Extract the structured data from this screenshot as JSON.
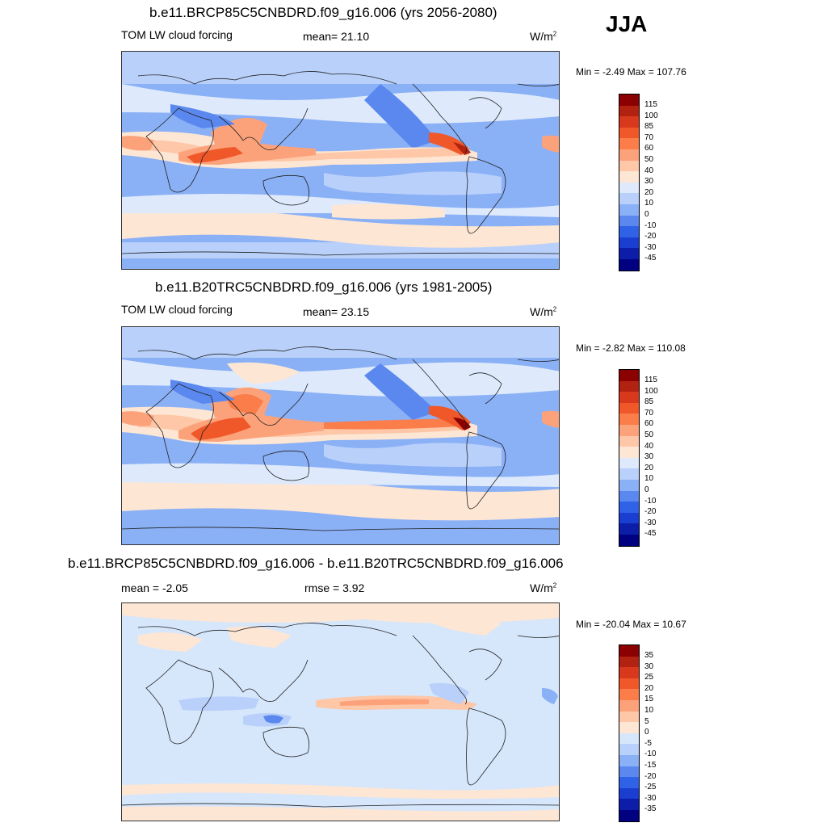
{
  "season": "JJA",
  "panels": [
    {
      "title": "b.e11.BRCP85C5CNBDRD.f09_g16.006 (yrs 2056-2080)",
      "variable": "TOM LW cloud forcing",
      "stat1": "mean=  21.10",
      "stat2": "",
      "units": "W/m",
      "units_sup": "2",
      "minmax": "Min =  -2.49 Max = 107.76",
      "colorbar": {
        "ticks": [
          "115",
          "100",
          "85",
          "70",
          "60",
          "50",
          "40",
          "30",
          "20",
          "10",
          "0",
          "-10",
          "-20",
          "-30",
          "-45"
        ],
        "colors": [
          "#8b0000",
          "#b22210",
          "#d8381c",
          "#f0582a",
          "#fa7d4a",
          "#fca27a",
          "#fdc7a8",
          "#fde6d4",
          "#deeafc",
          "#b8d0fa",
          "#8ab0f6",
          "#5a88ef",
          "#3062e8",
          "#1a3ed0",
          "#0c1ea8",
          "#000080"
        ]
      }
    },
    {
      "title": "b.e11.B20TRC5CNBDRD.f09_g16.006 (yrs 1981-2005)",
      "variable": "TOM LW cloud forcing",
      "stat1": "mean=  23.15",
      "stat2": "",
      "units": "W/m",
      "units_sup": "2",
      "minmax": "Min =  -2.82 Max = 110.08",
      "colorbar": {
        "ticks": [
          "115",
          "100",
          "85",
          "70",
          "60",
          "50",
          "40",
          "30",
          "20",
          "10",
          "0",
          "-10",
          "-20",
          "-30",
          "-45"
        ],
        "colors": [
          "#8b0000",
          "#b22210",
          "#d8381c",
          "#f0582a",
          "#fa7d4a",
          "#fca27a",
          "#fdc7a8",
          "#fde6d4",
          "#deeafc",
          "#b8d0fa",
          "#8ab0f6",
          "#5a88ef",
          "#3062e8",
          "#1a3ed0",
          "#0c1ea8",
          "#000080"
        ]
      }
    },
    {
      "title": "b.e11.BRCP85C5CNBDRD.f09_g16.006 - b.e11.B20TRC5CNBDRD.f09_g16.006",
      "variable": "",
      "stat1": "mean =  -2.05",
      "stat2": "rmse =   3.92",
      "units": "W/m",
      "units_sup": "2",
      "minmax": "Min = -20.04 Max =  10.67",
      "colorbar": {
        "ticks": [
          "35",
          "30",
          "25",
          "20",
          "15",
          "10",
          "5",
          "0",
          "-5",
          "-10",
          "-15",
          "-20",
          "-25",
          "-30",
          "-35"
        ],
        "colors": [
          "#8b0000",
          "#b22210",
          "#d8381c",
          "#f0582a",
          "#fa7d4a",
          "#fca27a",
          "#fdc7a8",
          "#fde6d4",
          "#d6e6fb",
          "#b8d0fa",
          "#8ab0f6",
          "#5a88ef",
          "#3062e8",
          "#1a3ed0",
          "#0c1ea8",
          "#000080"
        ]
      }
    }
  ]
}
